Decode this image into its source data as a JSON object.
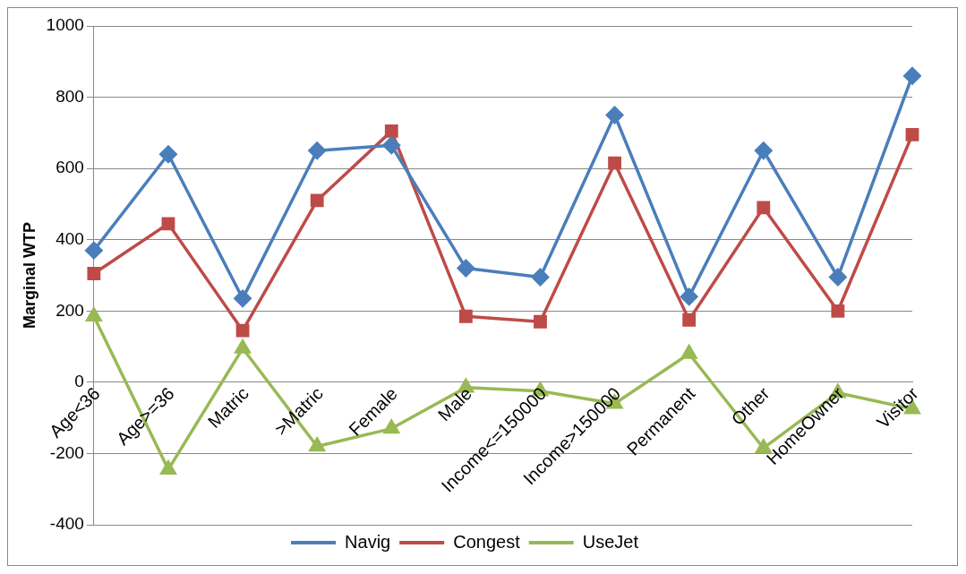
{
  "chart_data": {
    "type": "line",
    "ylabel": "Marginal WTP",
    "categories": [
      "Age<36",
      "Age>=36",
      "Matric",
      ">Matric",
      "Female",
      "Male",
      "Income<=150000",
      "Income>150000",
      "Permanent",
      "Other",
      "HomeOwner",
      "Visitor"
    ],
    "series": [
      {
        "name": "Navig",
        "color": "#4a7ebb",
        "marker": "diamond",
        "values": [
          370,
          640,
          235,
          650,
          665,
          320,
          295,
          750,
          240,
          650,
          295,
          860
        ]
      },
      {
        "name": "Congest",
        "color": "#be4b48",
        "marker": "square",
        "values": [
          305,
          445,
          145,
          510,
          705,
          185,
          170,
          615,
          175,
          490,
          200,
          695
        ]
      },
      {
        "name": "UseJet",
        "color": "#98b954",
        "marker": "triangle",
        "values": [
          185,
          -245,
          95,
          -180,
          -130,
          -15,
          -25,
          -60,
          80,
          -185,
          -30,
          -75
        ]
      }
    ],
    "ylim": [
      -400,
      1000
    ],
    "yticks": [
      -400,
      -200,
      0,
      200,
      400,
      600,
      800,
      1000
    ],
    "grid": "y",
    "legend": "bottom"
  }
}
